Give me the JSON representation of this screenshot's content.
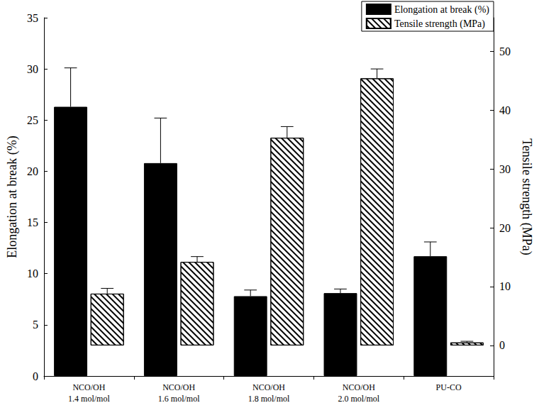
{
  "chart_data": {
    "type": "bar",
    "categories": [
      "NCO/OH\n1.4 mol/mol",
      "NCO/OH\n1.6 mol/mol",
      "NCO/OH\n1.8 mol/mol",
      "NCO/OH\n2.0 mol/mol",
      "PU-CO"
    ],
    "series": [
      {
        "name": "Elongation at break (%)",
        "color": "#000000",
        "line_style": "solid",
        "values": [
          26.3,
          20.8,
          7.8,
          8.1,
          11.7
        ],
        "errors": [
          3.8,
          4.4,
          0.6,
          0.4,
          1.4
        ]
      },
      {
        "name": "Tensile strength (MPa)",
        "color": "#000000",
        "line_style": "hatched",
        "axis": "y2",
        "values": [
          8.8,
          14.2,
          35.3,
          45.4,
          0.5
        ],
        "errors": [
          0.9,
          0.9,
          1.9,
          1.6,
          0.2
        ]
      }
    ],
    "ylabel": "Elongation at break (%)",
    "y2label": "Tensile strength (MPa)",
    "ylim": [
      0,
      35
    ],
    "yticks": [
      0,
      5,
      10,
      15,
      20,
      25,
      30,
      35
    ],
    "y2lim": [
      -5.2,
      55.7
    ],
    "y2ticks": [
      0,
      10,
      20,
      30,
      40,
      50
    ],
    "legend": "upper right",
    "grid": false
  }
}
